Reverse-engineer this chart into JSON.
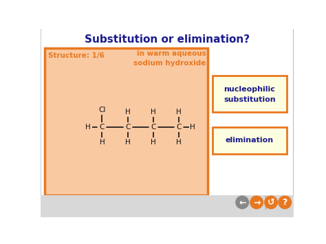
{
  "title": "Substitution or elimination?",
  "title_color": "#1a1a8c",
  "title_fontsize": 11,
  "main_bg": "#ffffff",
  "slide_border_color": "#8899bb",
  "orange_box_bg": "#f9c9a2",
  "orange_box_border": "#e87820",
  "structure_label": "Structure: 1/6",
  "condition_label": "in warm aqueous\nsodium hydroxide",
  "label_color": "#e87820",
  "label_fontsize": 7.5,
  "button1_text": "nucleophilic\nsubstitution",
  "button2_text": "elimination",
  "button_bg": "#fdfde0",
  "button_border": "#e87820",
  "button_text_color": "#1a1a8c",
  "button_fontsize": 8,
  "molecule_color": "#111111",
  "molecule_fontsize": 7.5,
  "bottom_bar_color": "#d8d8d8",
  "nav_circle_color1": "#888888",
  "nav_circle_color2": "#e87820",
  "title_bar_bg": "#ffffff"
}
